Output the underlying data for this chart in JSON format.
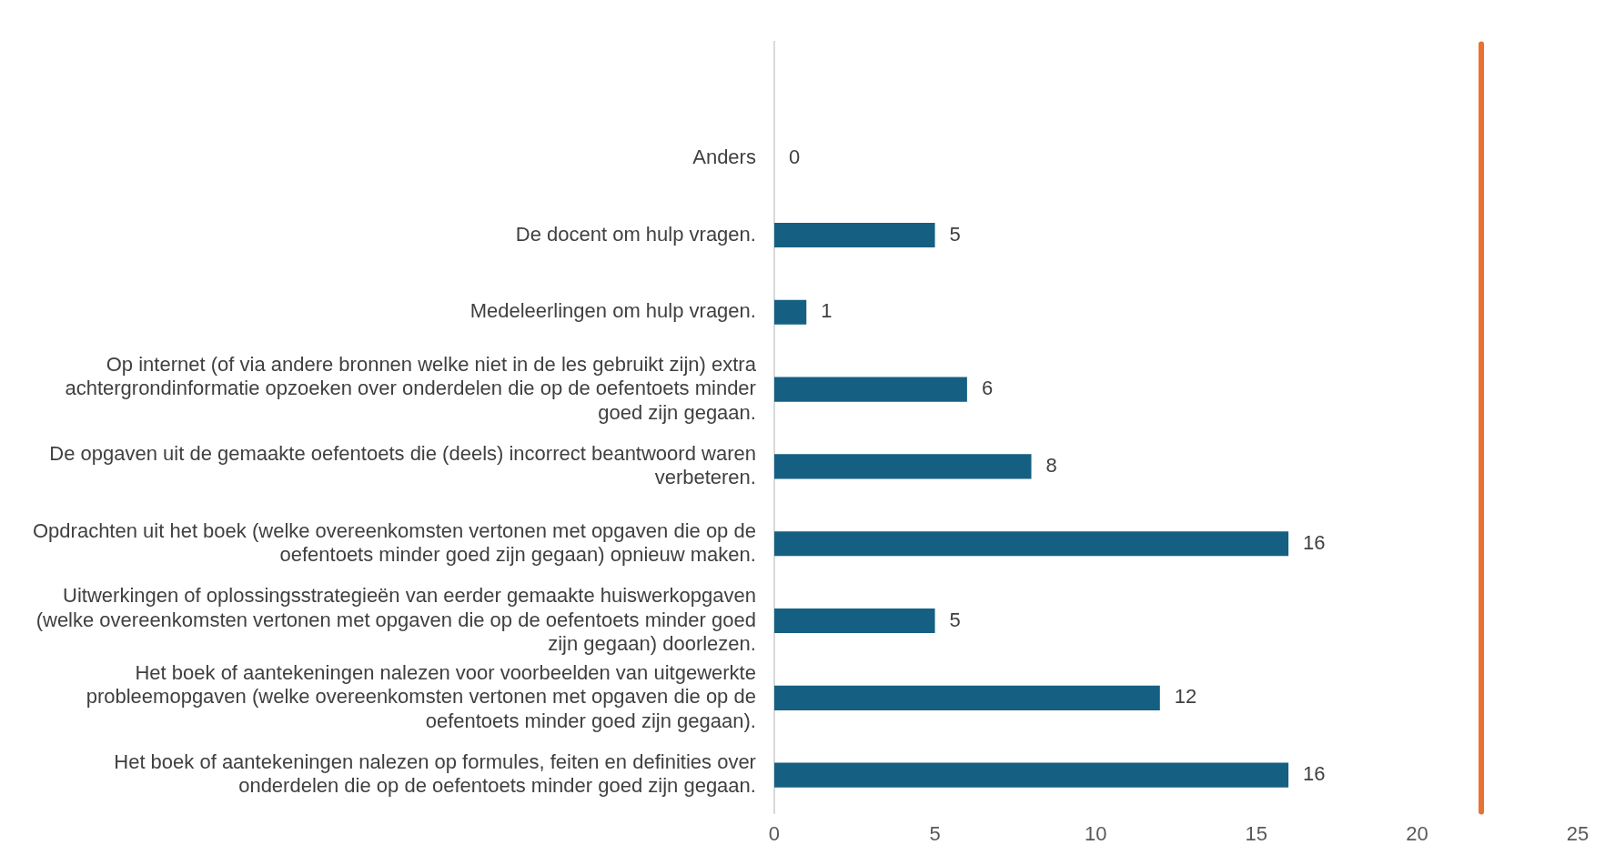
{
  "chart_data": {
    "type": "bar",
    "orientation": "horizontal",
    "categories": [
      null,
      "Anders",
      "De docent om hulp vragen.",
      "Medeleerlingen om hulp vragen.",
      "Op internet (of via andere bronnen welke niet in de les gebruikt zijn) extra achtergrondinformatie opzoeken over onderdelen die op de oefentoets minder goed zijn gegaan.",
      "De opgaven uit de gemaakte oefentoets die (deels) incorrect beantwoord waren verbeteren.",
      "Opdrachten uit het boek (welke overeenkomsten vertonen met opgaven die op de oefentoets minder goed zijn gegaan) opnieuw maken.",
      "Uitwerkingen of oplossingsstrategieën van eerder gemaakte huiswerkopgaven (welke overeenkomsten vertonen met opgaven die op de oefentoets minder goed zijn gegaan) doorlezen.",
      "Het boek of aantekeningen nalezen voor voorbeelden van uitgewerkte probleemopgaven (welke overeenkomsten vertonen met opgaven die op de oefentoets minder goed zijn gegaan).",
      "Het boek of aantekeningen nalezen op formules, feiten en definities over onderdelen die op de oefentoets minder goed zijn gegaan."
    ],
    "values": [
      null,
      0,
      5,
      1,
      6,
      8,
      16,
      5,
      12,
      16
    ],
    "color": "#156082",
    "data_labels": true,
    "xlim": [
      0,
      25
    ],
    "xticks": [
      0,
      5,
      10,
      15,
      20,
      25
    ],
    "ref_lines": [
      {
        "axis": "x",
        "value": 22,
        "color": "#e97132"
      }
    ],
    "legend": false
  }
}
